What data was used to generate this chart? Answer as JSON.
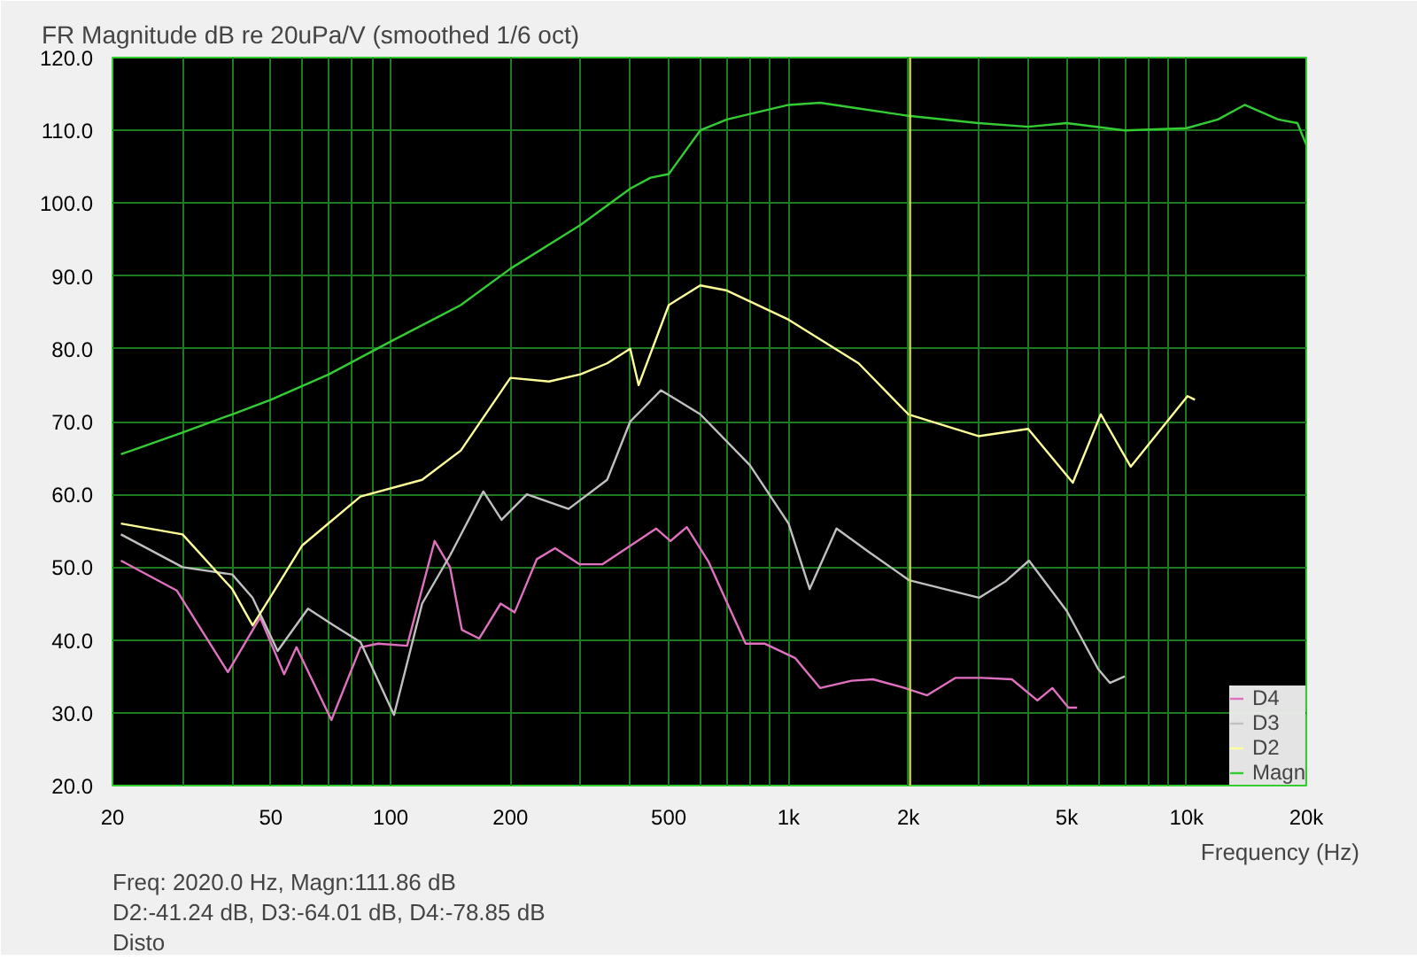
{
  "chart_data": {
    "type": "line",
    "title": "FR Magnitude dB re 20uPa/V (smoothed 1/6 oct)",
    "xlabel": "Frequency (Hz)",
    "log": "x",
    "grid": true,
    "legend": "bottom right",
    "marker": "none",
    "line_style": "solid",
    "xlim": [
      20,
      20000
    ],
    "ylim": [
      20,
      120
    ],
    "xticks": [
      20,
      {
        "value": 30,
        "label": null
      },
      {
        "value": 40,
        "label": null
      },
      50,
      {
        "value": 60,
        "label": null
      },
      {
        "value": 70,
        "label": null
      },
      {
        "value": 80,
        "label": null
      },
      {
        "value": 90,
        "label": null
      },
      100,
      200,
      {
        "value": 300,
        "label": null
      },
      {
        "value": 400,
        "label": null
      },
      500,
      {
        "value": 600,
        "label": null
      },
      {
        "value": 700,
        "label": null
      },
      {
        "value": 800,
        "label": null
      },
      {
        "value": 900,
        "label": null
      },
      {
        "value": 1000,
        "label": "1k"
      },
      {
        "value": 2000,
        "label": "2k"
      },
      {
        "value": 3000,
        "label": null
      },
      {
        "value": 4000,
        "label": null
      },
      {
        "value": 5000,
        "label": "5k"
      },
      {
        "value": 6000,
        "label": null
      },
      {
        "value": 7000,
        "label": null
      },
      {
        "value": 8000,
        "label": null
      },
      {
        "value": 9000,
        "label": null
      },
      {
        "value": 10000,
        "label": "10k"
      },
      {
        "value": 20000,
        "label": "20k"
      }
    ],
    "yticks": [
      {
        "value": 20,
        "label": "20.0"
      },
      {
        "value": 30,
        "label": "30.0"
      },
      {
        "value": 40,
        "label": "40.0"
      },
      {
        "value": 50,
        "label": "50.0"
      },
      {
        "value": 60,
        "label": "60.0"
      },
      {
        "value": 70,
        "label": "70.0"
      },
      {
        "value": 80,
        "label": "80.0"
      },
      {
        "value": 90,
        "label": "90.0"
      },
      {
        "value": 100,
        "label": "100.0"
      },
      {
        "value": 110,
        "label": "110.0"
      },
      {
        "value": 120,
        "label": "120.0"
      }
    ],
    "ref_lines": [
      {
        "axis": "x",
        "value": 2020,
        "color": "#c8e050"
      }
    ],
    "series": [
      {
        "name": "D4",
        "color": "#e070c0",
        "x": [
          21,
          29,
          39,
          47,
          54,
          58,
          71,
          84,
          93,
          110,
          129,
          141,
          151,
          167,
          189,
          205,
          233,
          259,
          298,
          341,
          465,
          505,
          555,
          630,
          780,
          870,
          1040,
          1200,
          1440,
          1630,
          1960,
          2230,
          2630,
          3070,
          3640,
          4220,
          4600,
          5050,
          5310
        ],
        "values": [
          50.9,
          46.8,
          35.6,
          43.1,
          35.3,
          39,
          29,
          39,
          39.5,
          39.2,
          53.6,
          50,
          41.4,
          40.2,
          45,
          43.8,
          51.1,
          52.6,
          50.4,
          50.4,
          55.3,
          53.6,
          55.5,
          50.7,
          39.5,
          39.5,
          37.5,
          33.4,
          34.4,
          34.6,
          33.4,
          32.4,
          34.8,
          34.8,
          34.6,
          31.7,
          33.4,
          30.7,
          30.7
        ]
      },
      {
        "name": "D3",
        "color": "#c0c0c0",
        "x": [
          21,
          30,
          40,
          45,
          52,
          62,
          72,
          84,
          102,
          120,
          141,
          171,
          190,
          220,
          280,
          350,
          400,
          478,
          600,
          800,
          1000,
          1130,
          1320,
          1600,
          2010,
          3010,
          3500,
          4020,
          5000,
          6000,
          6420,
          7000
        ],
        "values": [
          54.5,
          50,
          49,
          45.8,
          38.5,
          44.3,
          42,
          39.7,
          29.7,
          45,
          51.6,
          60.4,
          56.5,
          60,
          58,
          62,
          70,
          74.3,
          71,
          64,
          56,
          47,
          55.3,
          52,
          48.2,
          45.8,
          48,
          50.9,
          44,
          36,
          34.1,
          35
        ]
      },
      {
        "name": "D2",
        "color": "#ffff99",
        "x": [
          21,
          30,
          40,
          45,
          50,
          60,
          84,
          120,
          150,
          200,
          250,
          300,
          350,
          400,
          420,
          500,
          600,
          700,
          1000,
          1500,
          2000,
          3000,
          4000,
          5180,
          6090,
          7240,
          10060,
          10500
        ],
        "values": [
          56,
          54.5,
          47,
          42,
          46,
          53,
          59.7,
          62,
          66,
          76,
          75.5,
          76.5,
          78,
          80,
          75,
          86,
          88.7,
          88,
          84,
          78,
          71,
          68,
          69,
          61.6,
          71,
          63.8,
          73.5,
          73
        ]
      },
      {
        "name": "Magn",
        "color": "#33cc33",
        "x": [
          21,
          30,
          40,
          50,
          70,
          100,
          150,
          200,
          300,
          400,
          450,
          500,
          600,
          700,
          1000,
          1200,
          1500,
          2000,
          3000,
          4000,
          5000,
          7000,
          10000,
          12000,
          14000,
          17000,
          19000,
          20000
        ],
        "values": [
          65.5,
          68.5,
          71,
          73,
          76.5,
          81,
          86,
          91,
          97,
          102,
          103.5,
          104,
          110,
          111.5,
          113.5,
          113.8,
          113,
          112,
          111,
          110.5,
          111,
          110,
          110.3,
          111.5,
          113.5,
          111.5,
          111,
          108
        ]
      }
    ],
    "annotations": [
      "Freq: 2020.0 Hz, Magn:111.86 dB",
      "D2:-41.24 dB, D3:-64.01 dB, D4:-78.85 dB",
      "Disto"
    ]
  }
}
